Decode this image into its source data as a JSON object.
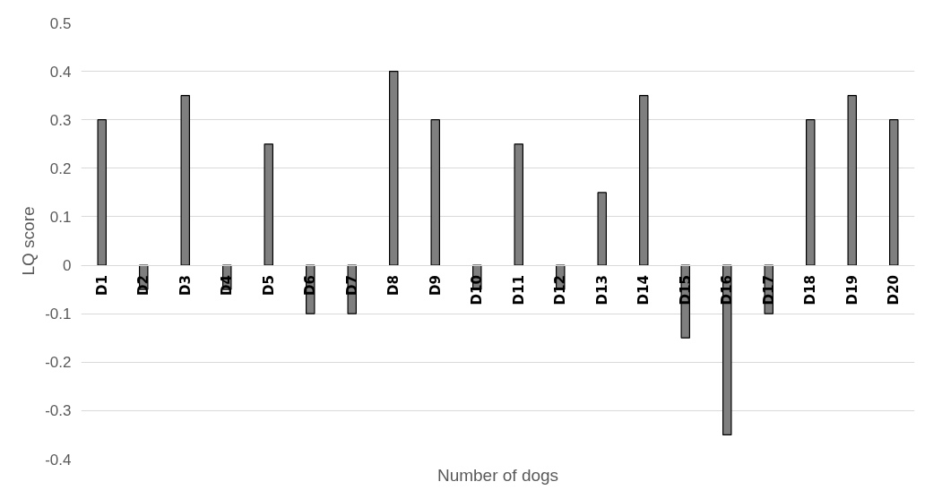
{
  "chart_data": {
    "type": "bar",
    "xlabel": "Number of dogs",
    "ylabel": "LQ score",
    "categories": [
      "D1",
      "D2",
      "D3",
      "D4",
      "D5",
      "D6",
      "D7",
      "D8",
      "D9",
      "D10",
      "D11",
      "D12",
      "D13",
      "D14",
      "D15",
      "D16",
      "D17",
      "D18",
      "D19",
      "D20"
    ],
    "values": [
      0.3,
      -0.05,
      0.35,
      -0.05,
      0.25,
      -0.1,
      -0.1,
      0.4,
      0.3,
      -0.05,
      0.25,
      -0.05,
      0.15,
      0.35,
      -0.15,
      -0.35,
      -0.1,
      0.3,
      0.35,
      0.3
    ],
    "color": "#7f7f7f",
    "ylim": [
      -0.4,
      0.5
    ],
    "yticks": [
      -0.4,
      -0.3,
      -0.2,
      -0.1,
      0,
      0.1,
      0.2,
      0.3,
      0.4,
      0.5
    ],
    "grid": "y"
  }
}
